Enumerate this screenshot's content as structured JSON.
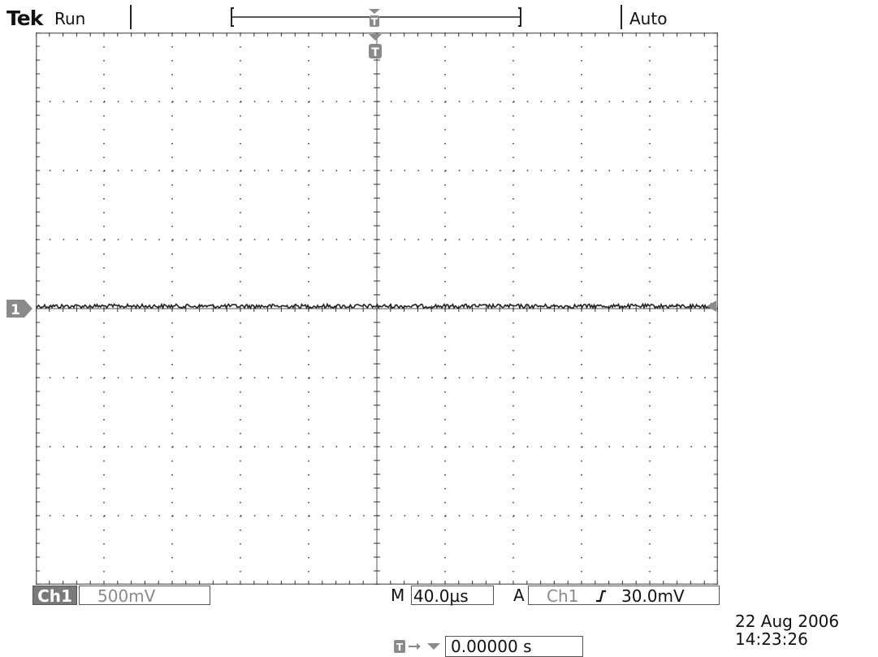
{
  "header": {
    "brand": "Tek",
    "acq_state": "Run",
    "trigger_mode": "Auto"
  },
  "channel": {
    "label": "Ch1",
    "scale": "500mV",
    "marker": "1"
  },
  "timebase": {
    "prefix": "M",
    "value": "40.0µs"
  },
  "trigger": {
    "mode_letter": "A",
    "source": "Ch1",
    "level": "30.0mV",
    "marker": "T"
  },
  "horizontal_position": {
    "value": "0.00000 s"
  },
  "datetime": {
    "date": "22 Aug 2006",
    "time": "14:23:26"
  },
  "colors": {
    "trace": "#222222",
    "grid": "#333333",
    "marker_fill": "#8a8a8a",
    "border": "#777777"
  }
}
